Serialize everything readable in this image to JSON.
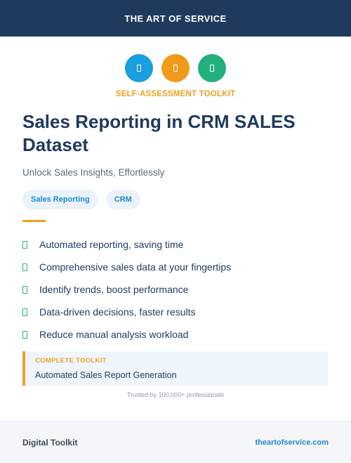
{
  "header": {
    "brand": "THE ART OF SERVICE"
  },
  "icons": [
    {
      "name": "document-icon",
      "color": "#1a9fe0"
    },
    {
      "name": "document-icon",
      "color": "#f09a1c"
    },
    {
      "name": "document-icon",
      "color": "#22b07d"
    }
  ],
  "eyebrow": "SELF-ASSESSMENT TOOLKIT",
  "title": "Sales Reporting in CRM SALES Dataset",
  "subtitle": "Unlock Sales Insights, Effortlessly",
  "tags": [
    "Sales Reporting",
    "CRM"
  ],
  "features": [
    "Automated reporting, saving time",
    "Comprehensive sales data at your fingertips",
    "Identify trends, boost performance",
    "Data-driven decisions, faster results",
    "Reduce manual analysis workload"
  ],
  "toolkit": {
    "label": "COMPLETE TOOLKIT",
    "value": "Automated Sales Report Generation"
  },
  "trusted": "Trusted by 100,000+ professionals",
  "footer": {
    "left": "Digital Toolkit",
    "right": "theartofservice.com"
  },
  "colors": {
    "navy": "#1f3a5c",
    "accent": "#f0a020",
    "link": "#1e88d0",
    "check": "#22b07d"
  }
}
